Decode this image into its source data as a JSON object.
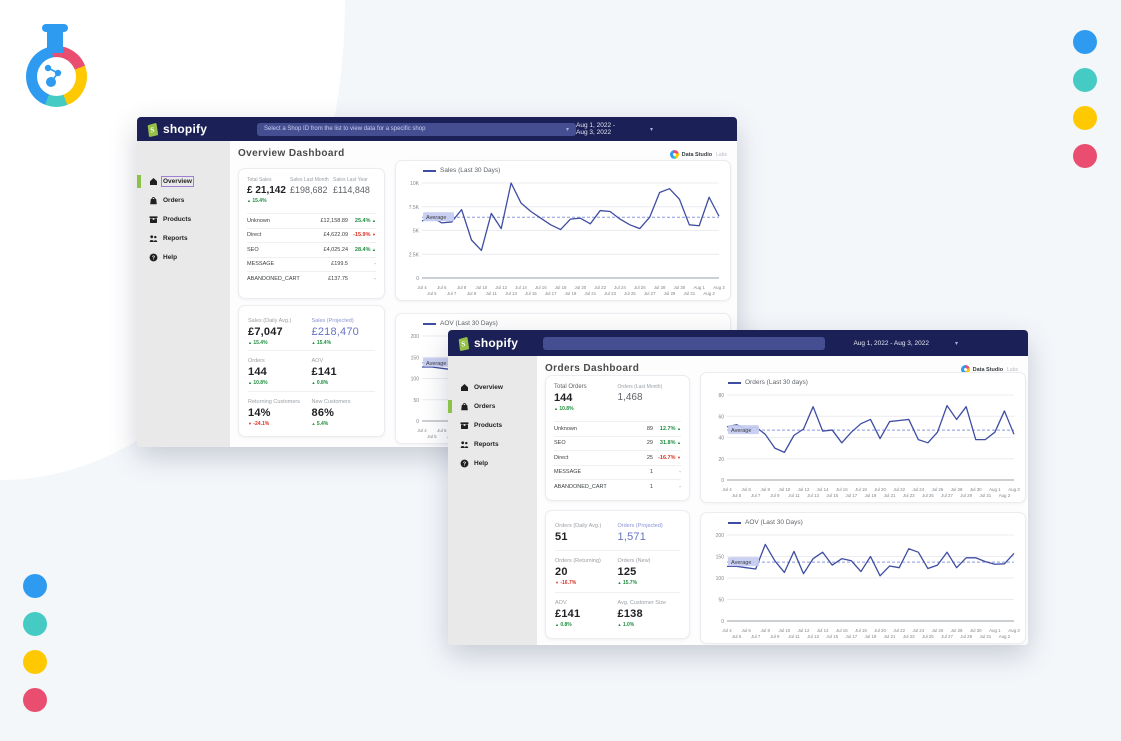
{
  "colors": {
    "positive": "#1e8e3e",
    "negative": "#d93025",
    "neutral": "#9aa0a6",
    "accent": "#6673c5",
    "header_navy": "#1b2156",
    "sidebar_active_green": "#8bc34a"
  },
  "decor": {
    "dots": [
      "#2e9bf0",
      "#45cbc4",
      "#fec900",
      "#e94d6f"
    ]
  },
  "watermark": {
    "brand": "Data Studio",
    "suffix": "Labs"
  },
  "windows": {
    "overview": {
      "header": {
        "brand": "shopify",
        "shop_selector": "Select a Shop ID from the list to view data for a specific shop",
        "date_range": "Aug 1, 2022 - Aug 3, 2022",
        "caret": "▾"
      },
      "title": "Overview Dashboard",
      "sidebar": [
        {
          "label": "Overview"
        },
        {
          "label": "Orders"
        },
        {
          "label": "Products"
        },
        {
          "label": "Reports"
        },
        {
          "label": "Help"
        }
      ],
      "stats_card": {
        "primary": {
          "label": "Total Sales",
          "value": "£ 21,142",
          "delta": "15.4%",
          "dir": "up"
        },
        "secondary": [
          {
            "label": "Sales Last Month",
            "value": "£198,682"
          },
          {
            "label": "Sales Last Year",
            "value": "£114,848"
          }
        ],
        "rows": [
          {
            "name": "Unknown",
            "value": "£12,158.89",
            "pct": "25.4%",
            "dir": "up"
          },
          {
            "name": "Direct",
            "value": "£4,622.09",
            "pct": "-15.9%",
            "dir": "down"
          },
          {
            "name": "SEO",
            "value": "£4,025.24",
            "pct": "28.4%",
            "dir": "up"
          },
          {
            "name": "MESSAGE",
            "value": "£199.5",
            "pct": "-",
            "dir": "none"
          },
          {
            "name": "ABANDONED_CART",
            "value": "£137.75",
            "pct": "-",
            "dir": "none"
          }
        ]
      },
      "kpis": [
        {
          "label": "Sales (Daily Avg.)",
          "value": "£7,047",
          "delta": "15.4%",
          "dir": "up",
          "accent": false
        },
        {
          "label": "Sales (Projected)",
          "value": "£218,470",
          "delta": "15.4%",
          "dir": "up",
          "accent": true
        },
        {
          "label": "Orders",
          "value": "144",
          "delta": "10.8%",
          "dir": "up",
          "accent": false
        },
        {
          "label": "AOV",
          "value": "£141",
          "delta": "0.8%",
          "dir": "up",
          "accent": false
        },
        {
          "label": "Returning Customers",
          "value": "14%",
          "delta": "-24.1%",
          "dir": "down",
          "accent": false
        },
        {
          "label": "New Customers",
          "value": "86%",
          "delta": "5.4%",
          "dir": "up",
          "accent": false
        }
      ]
    },
    "orders": {
      "header": {
        "brand": "shopify",
        "shop_selector": "",
        "date_range": "Aug 1, 2022 - Aug 3, 2022",
        "caret": "▾"
      },
      "title": "Orders Dashboard",
      "sidebar": [
        {
          "label": "Overview"
        },
        {
          "label": "Orders"
        },
        {
          "label": "Products"
        },
        {
          "label": "Reports"
        },
        {
          "label": "Help"
        }
      ],
      "stats_card": {
        "primary": {
          "label": "Total Orders",
          "value": "144",
          "delta": "10.8%",
          "dir": "up"
        },
        "secondary": [
          {
            "label": "Orders (Last Month)",
            "value": "1,468"
          }
        ],
        "rows": [
          {
            "name": "Unknown",
            "value": "89",
            "pct": "12.7%",
            "dir": "up"
          },
          {
            "name": "SEO",
            "value": "29",
            "pct": "31.8%",
            "dir": "up"
          },
          {
            "name": "Direct",
            "value": "25",
            "pct": "-16.7%",
            "dir": "down"
          },
          {
            "name": "MESSAGE",
            "value": "1",
            "pct": "-",
            "dir": "none"
          },
          {
            "name": "ABANDONED_CART",
            "value": "1",
            "pct": "-",
            "dir": "none"
          }
        ]
      },
      "kpis": [
        {
          "label": "Orders (Daily Avg.)",
          "value": "51",
          "delta": "",
          "dir": "none",
          "accent": false
        },
        {
          "label": "Orders (Projected)",
          "value": "1,571",
          "delta": "",
          "dir": "none",
          "accent": true
        },
        {
          "label": "Orders (Returning)",
          "value": "20",
          "delta": "-16.7%",
          "dir": "down",
          "accent": false
        },
        {
          "label": "Orders (New)",
          "value": "125",
          "delta": "15.7%",
          "dir": "up",
          "accent": false
        },
        {
          "label": "AOV",
          "value": "£141",
          "delta": "0.8%",
          "dir": "up",
          "accent": false
        },
        {
          "label": "Avg. Customer Size",
          "value": "£138",
          "delta": "1.0%",
          "dir": "up",
          "accent": false
        }
      ]
    }
  },
  "chart_data": [
    {
      "id": "ov_sales",
      "type": "line",
      "title": "Sales (Last 30 Days)",
      "color": "#3e4da1",
      "ylim": [
        0,
        10000
      ],
      "average": 6400,
      "average_label": "Average",
      "legend_position": "top-left",
      "grid": true,
      "yticks": [
        {
          "v": 0,
          "label": "0"
        },
        {
          "v": 2500,
          "label": "2.5K"
        },
        {
          "v": 5000,
          "label": "5K"
        },
        {
          "v": 7500,
          "label": "7.5K"
        },
        {
          "v": 10000,
          "label": "10K"
        }
      ],
      "x": [
        "Jul 4",
        "Jul 5",
        "Jul 6",
        "Jul 7",
        "Jul 8",
        "Jul 9",
        "Jul 10",
        "Jul 11",
        "Jul 12",
        "Jul 13",
        "Jul 14",
        "Jul 15",
        "Jul 16",
        "Jul 17",
        "Jul 18",
        "Jul 19",
        "Jul 20",
        "Jul 21",
        "Jul 22",
        "Jul 23",
        "Jul 24",
        "Jul 25",
        "Jul 26",
        "Jul 27",
        "Jul 28",
        "Jul 29",
        "Jul 30",
        "Jul 31",
        "Aug 1",
        "Aug 2",
        "Aug 3"
      ],
      "values": [
        6000,
        6400,
        5800,
        5900,
        7200,
        4000,
        2900,
        6800,
        5200,
        10000,
        7900,
        7000,
        6300,
        5600,
        5100,
        6200,
        6300,
        5700,
        7100,
        7000,
        6200,
        5600,
        5200,
        6400,
        9000,
        9400,
        8300,
        5600,
        5500,
        8500,
        6500
      ]
    },
    {
      "id": "ov_aov",
      "type": "line",
      "title": "AOV (Last 30 Days)",
      "color": "#3e4da1",
      "ylim": [
        0,
        200
      ],
      "average": 137,
      "average_label": "Average",
      "legend_position": "top-left",
      "grid": true,
      "yticks": [
        {
          "v": 0,
          "label": "0"
        },
        {
          "v": 50,
          "label": "50"
        },
        {
          "v": 100,
          "label": "100"
        },
        {
          "v": 150,
          "label": "150"
        },
        {
          "v": 200,
          "label": "200"
        }
      ],
      "x": [
        "Jul 4",
        "Jul 5",
        "Jul 6",
        "Jul 7",
        "Jul 8",
        "Jul 9",
        "Jul 10",
        "Jul 11",
        "Jul 12",
        "Jul 13",
        "Jul 14",
        "Jul 15",
        "Jul 16",
        "Jul 17",
        "Jul 18",
        "Jul 19",
        "Jul 20",
        "Jul 21",
        "Jul 22",
        "Jul 23",
        "Jul 24",
        "Jul 25",
        "Jul 26",
        "Jul 27",
        "Jul 28",
        "Jul 29",
        "Jul 30",
        "Jul 31",
        "Aug 1",
        "Aug 2",
        "Aug 3"
      ],
      "values": [
        127,
        127,
        124,
        121,
        178,
        140,
        113,
        162,
        110,
        145,
        160,
        130,
        145,
        140,
        115,
        150,
        105,
        128,
        124,
        168,
        160,
        122,
        130,
        160,
        124,
        147,
        147,
        138,
        132,
        133,
        157
      ]
    },
    {
      "id": "ord_orders",
      "type": "line",
      "title": "Orders (Last 30 days)",
      "color": "#3e4da1",
      "ylim": [
        0,
        80
      ],
      "average": 47,
      "average_label": "Average",
      "legend_position": "top-left",
      "grid": true,
      "yticks": [
        {
          "v": 0,
          "label": "0"
        },
        {
          "v": 20,
          "label": "20"
        },
        {
          "v": 40,
          "label": "40"
        },
        {
          "v": 60,
          "label": "60"
        },
        {
          "v": 80,
          "label": "80"
        }
      ],
      "x": [
        "Jul 4",
        "Jul 5",
        "Jul 6",
        "Jul 7",
        "Jul 8",
        "Jul 9",
        "Jul 10",
        "Jul 11",
        "Jul 12",
        "Jul 13",
        "Jul 14",
        "Jul 15",
        "Jul 16",
        "Jul 17",
        "Jul 18",
        "Jul 19",
        "Jul 20",
        "Jul 21",
        "Jul 22",
        "Jul 23",
        "Jul 24",
        "Jul 25",
        "Jul 26",
        "Jul 27",
        "Jul 28",
        "Jul 29",
        "Jul 30",
        "Jul 31",
        "Aug 1",
        "Aug 2",
        "Aug 3"
      ],
      "values": [
        50,
        52,
        48,
        50,
        43,
        30,
        26,
        42,
        48,
        69,
        46,
        47,
        35,
        45,
        53,
        57,
        39,
        55,
        56,
        57,
        38,
        35,
        45,
        70,
        57,
        69,
        38,
        38,
        45,
        65,
        43
      ]
    },
    {
      "id": "ord_aov",
      "type": "line",
      "title": "AOV (Last 30 Days)",
      "color": "#3e4da1",
      "ylim": [
        0,
        200
      ],
      "average": 137,
      "average_label": "Average",
      "legend_position": "top-left",
      "grid": true,
      "yticks": [
        {
          "v": 0,
          "label": "0"
        },
        {
          "v": 50,
          "label": "50"
        },
        {
          "v": 100,
          "label": "100"
        },
        {
          "v": 150,
          "label": "150"
        },
        {
          "v": 200,
          "label": "200"
        }
      ],
      "x": [
        "Jul 4",
        "Jul 5",
        "Jul 6",
        "Jul 7",
        "Jul 8",
        "Jul 9",
        "Jul 10",
        "Jul 11",
        "Jul 12",
        "Jul 13",
        "Jul 14",
        "Jul 15",
        "Jul 16",
        "Jul 17",
        "Jul 18",
        "Jul 19",
        "Jul 20",
        "Jul 21",
        "Jul 22",
        "Jul 23",
        "Jul 24",
        "Jul 25",
        "Jul 26",
        "Jul 27",
        "Jul 28",
        "Jul 29",
        "Jul 30",
        "Jul 31",
        "Aug 1",
        "Aug 2",
        "Aug 3"
      ],
      "values": [
        127,
        127,
        124,
        121,
        178,
        140,
        113,
        162,
        110,
        145,
        160,
        130,
        145,
        140,
        115,
        150,
        105,
        128,
        124,
        168,
        160,
        122,
        130,
        160,
        124,
        147,
        147,
        138,
        132,
        133,
        157
      ]
    }
  ]
}
